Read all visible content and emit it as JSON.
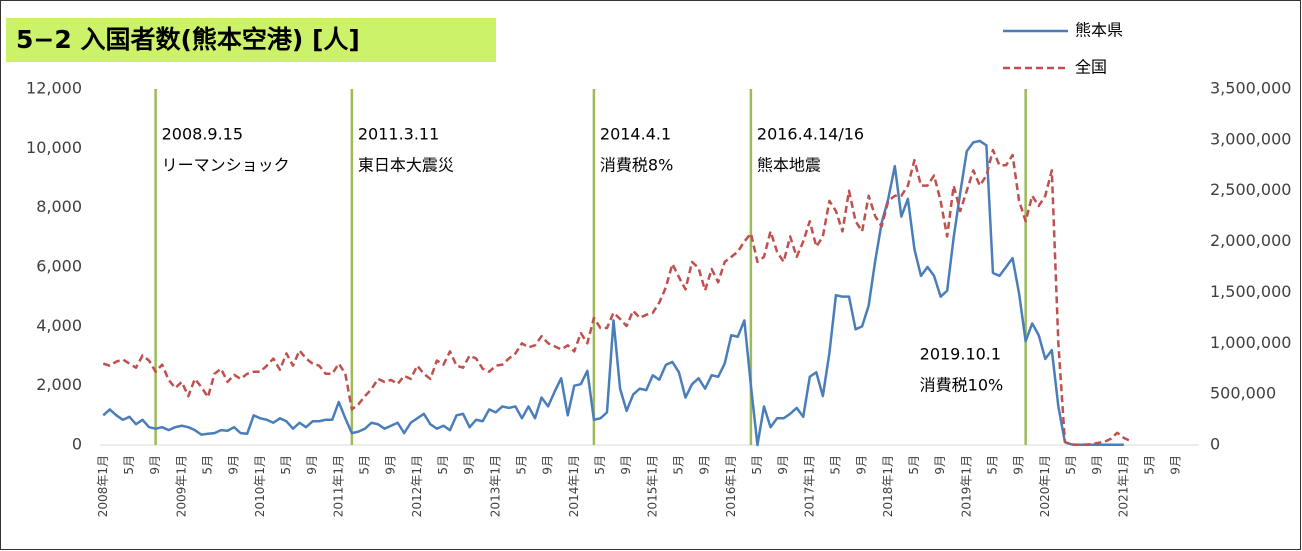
{
  "chart_data": {
    "type": "line",
    "title": "5−2 入国者数(熊本空港) [人]",
    "categories": [
      "2008年1月",
      null,
      null,
      null,
      "5月",
      null,
      null,
      null,
      "9月",
      null,
      null,
      null,
      "2009年1月",
      null,
      null,
      null,
      "5月",
      null,
      null,
      null,
      "9月",
      null,
      null,
      null,
      "2010年1月",
      null,
      null,
      null,
      "5月",
      null,
      null,
      null,
      "9月",
      null,
      null,
      null,
      "2011年1月",
      null,
      null,
      null,
      "5月",
      null,
      null,
      null,
      "9月",
      null,
      null,
      null,
      "2012年1月",
      null,
      null,
      null,
      "5月",
      null,
      null,
      null,
      "9月",
      null,
      null,
      null,
      "2013年1月",
      null,
      null,
      null,
      "5月",
      null,
      null,
      null,
      "9月",
      null,
      null,
      null,
      "2014年1月",
      null,
      null,
      null,
      "5月",
      null,
      null,
      null,
      "9月",
      null,
      null,
      null,
      "2015年1月",
      null,
      null,
      null,
      "5月",
      null,
      null,
      null,
      "9月",
      null,
      null,
      null,
      "2016年1月",
      null,
      null,
      null,
      "5月",
      null,
      null,
      null,
      "9月",
      null,
      null,
      null,
      "2017年1月",
      null,
      null,
      null,
      "5月",
      null,
      null,
      null,
      "9月",
      null,
      null,
      null,
      "2018年1月",
      null,
      null,
      null,
      "5月",
      null,
      null,
      null,
      "9月",
      null,
      null,
      null,
      "2019年1月",
      null,
      null,
      null,
      "5月",
      null,
      null,
      null,
      "9月",
      null,
      null,
      null,
      "2020年1月",
      null,
      null,
      null,
      "5月",
      null,
      null,
      null,
      "9月",
      null,
      null,
      null,
      "2021年1月",
      null,
      null,
      null,
      "5月",
      null,
      null,
      null,
      "9月",
      null,
      null,
      null
    ],
    "series": [
      {
        "name": "熊本県",
        "color": "#4a7ebb",
        "dash": false,
        "axis": "y",
        "values": [
          1000,
          1200,
          1000,
          850,
          950,
          700,
          850,
          600,
          550,
          600,
          500,
          600,
          650,
          600,
          500,
          350,
          380,
          400,
          500,
          480,
          600,
          400,
          380,
          1000,
          900,
          850,
          750,
          900,
          800,
          550,
          750,
          600,
          800,
          800,
          850,
          850,
          1450,
          900,
          400,
          450,
          550,
          750,
          700,
          550,
          650,
          750,
          400,
          750,
          900,
          1050,
          700,
          550,
          650,
          500,
          1000,
          1050,
          600,
          850,
          800,
          1200,
          1100,
          1300,
          1250,
          1300,
          900,
          1300,
          900,
          1600,
          1300,
          1800,
          2250,
          1000,
          2000,
          2050,
          2500,
          850,
          900,
          1100,
          4200,
          1900,
          1150,
          1700,
          1900,
          1850,
          2350,
          2200,
          2700,
          2800,
          2450,
          1600,
          2050,
          2250,
          1900,
          2350,
          2300,
          2750,
          3700,
          3650,
          4200,
          2000,
          0,
          1300,
          600,
          900,
          900,
          1050,
          1250,
          950,
          2300,
          2450,
          1650,
          3100,
          5050,
          5000,
          5000,
          3900,
          4000,
          4700,
          6200,
          7500,
          8300,
          9400,
          7700,
          8300,
          6600,
          5700,
          6000,
          5700,
          5000,
          5200,
          7000,
          8500,
          9900,
          10200,
          10250,
          10100,
          5800,
          5700,
          6000,
          6300,
          5100,
          3500,
          4100,
          3700,
          2900,
          3200,
          1300,
          100,
          20,
          10,
          10,
          10,
          10,
          10,
          10,
          10,
          10,
          null,
          null,
          null,
          null,
          null,
          null,
          null,
          null,
          null,
          null,
          null
        ]
      },
      {
        "name": "全国",
        "color": "#c0504d",
        "dash": true,
        "axis": "y2",
        "values": [
          800000,
          780000,
          820000,
          840000,
          800000,
          760000,
          880000,
          830000,
          720000,
          790000,
          640000,
          560000,
          620000,
          480000,
          650000,
          570000,
          470000,
          700000,
          750000,
          620000,
          690000,
          650000,
          700000,
          720000,
          720000,
          780000,
          850000,
          740000,
          900000,
          780000,
          930000,
          850000,
          800000,
          780000,
          700000,
          700000,
          800000,
          700000,
          350000,
          400000,
          480000,
          550000,
          650000,
          620000,
          640000,
          600000,
          680000,
          650000,
          780000,
          700000,
          650000,
          830000,
          790000,
          920000,
          780000,
          760000,
          880000,
          850000,
          750000,
          720000,
          780000,
          790000,
          850000,
          900000,
          1000000,
          960000,
          980000,
          1070000,
          1000000,
          970000,
          940000,
          980000,
          920000,
          1100000,
          1000000,
          1250000,
          1150000,
          1150000,
          1300000,
          1240000,
          1170000,
          1320000,
          1250000,
          1280000,
          1300000,
          1400000,
          1550000,
          1780000,
          1650000,
          1530000,
          1800000,
          1740000,
          1520000,
          1730000,
          1600000,
          1800000,
          1850000,
          1900000,
          2000000,
          2080000,
          1800000,
          1850000,
          2100000,
          1900000,
          1800000,
          2050000,
          1850000,
          2000000,
          2200000,
          1950000,
          2050000,
          2400000,
          2300000,
          2100000,
          2500000,
          2200000,
          2100000,
          2450000,
          2250000,
          2150000,
          2400000,
          2450000,
          2450000,
          2550000,
          2800000,
          2550000,
          2550000,
          2650000,
          2400000,
          2050000,
          2550000,
          2300000,
          2500000,
          2700000,
          2550000,
          2650000,
          2900000,
          2750000,
          2750000,
          2850000,
          2400000,
          2200000,
          2450000,
          2350000,
          2450000,
          2700000,
          1000000,
          30000,
          2000,
          3000,
          4000,
          8000,
          20000,
          30000,
          60000,
          120000,
          70000,
          40000,
          null,
          null,
          null,
          null,
          null,
          null,
          null,
          null,
          null,
          null
        ]
      }
    ],
    "ylim": [
      0,
      12000
    ],
    "yticks": [
      0,
      {
        "value": 2000,
        "label": "2,000"
      },
      {
        "value": 4000,
        "label": "4,000"
      },
      {
        "value": 6000,
        "label": "6,000"
      },
      {
        "value": 8000,
        "label": "8,000"
      },
      {
        "value": 10000,
        "label": "10,000"
      },
      {
        "value": 12000,
        "label": "12,000"
      }
    ],
    "y2lim": [
      0,
      3500000
    ],
    "y2ticks": [
      0,
      {
        "value": 500000,
        "label": "500,000"
      },
      {
        "value": 1000000,
        "label": "1,000,000"
      },
      {
        "value": 1500000,
        "label": "1,500,000"
      },
      {
        "value": 2000000,
        "label": "2,000,000"
      },
      {
        "value": 2500000,
        "label": "2,500,000"
      },
      {
        "value": 3000000,
        "label": "3,000,000"
      },
      {
        "value": 3500000,
        "label": "3,500,000"
      }
    ],
    "annotation_color": "#9bbb59",
    "annotations": [
      {
        "label": "2008.9.15",
        "text": "リーマンショック"
      },
      {
        "label": "2011.3.11",
        "text": "東日本大震災"
      },
      {
        "label": "2014.4.1",
        "text": "消費税8%"
      },
      {
        "label": "2016.4.14/16",
        "text": "熊本地震"
      },
      {
        "label": "2019.10.1",
        "text": "消費税10%"
      }
    ]
  }
}
